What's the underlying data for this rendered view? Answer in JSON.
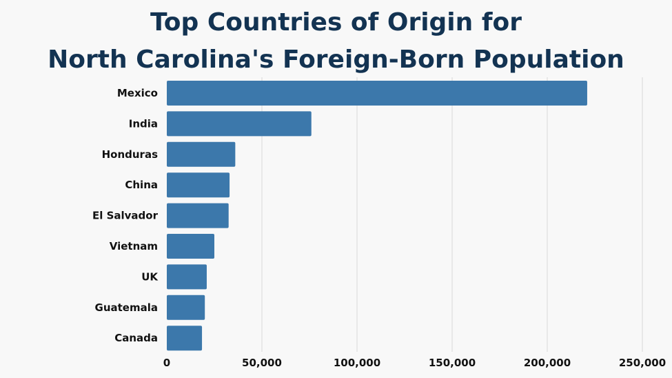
{
  "chart_data": {
    "type": "bar",
    "orientation": "horizontal",
    "title_lines": [
      "Top Countries of Origin for",
      "North Carolina's Foreign-Born Population"
    ],
    "categories": [
      "Mexico",
      "India",
      "Honduras",
      "China",
      "El Salvador",
      "Vietnam",
      "UK",
      "Guatemala",
      "Canada"
    ],
    "values": [
      221000,
      76000,
      36000,
      33000,
      32500,
      25000,
      21000,
      20000,
      18500
    ],
    "xlim": [
      0,
      250000
    ],
    "xticks": [
      0,
      50000,
      100000,
      150000,
      200000,
      250000
    ],
    "xtick_labels": [
      "0",
      "50,000",
      "100,000",
      "150,000",
      "200,000",
      "250,000"
    ],
    "grid": "vertical",
    "legend": "none",
    "bar_color": "#3c78ab",
    "title_color": "#133352"
  }
}
